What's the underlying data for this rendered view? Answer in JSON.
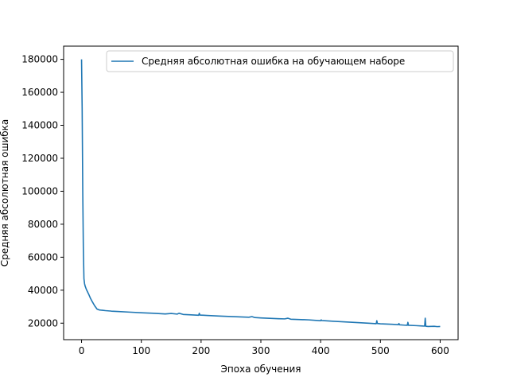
{
  "chart_data": {
    "type": "line",
    "title": "",
    "xlabel": "Эпоха обучения",
    "ylabel": "Средняя абсолютная ошибка",
    "xlim": [
      -30,
      630
    ],
    "ylim": [
      10000,
      188000
    ],
    "x_ticks": [
      0,
      100,
      200,
      300,
      400,
      500,
      600
    ],
    "x_tick_labels": [
      "0",
      "100",
      "200",
      "300",
      "400",
      "500",
      "600"
    ],
    "y_ticks": [
      20000,
      40000,
      60000,
      80000,
      100000,
      120000,
      140000,
      160000,
      180000
    ],
    "y_tick_labels": [
      "20000",
      "40000",
      "60000",
      "80000",
      "100000",
      "120000",
      "140000",
      "160000",
      "180000"
    ],
    "grid": false,
    "legend_position": "top-right",
    "series": [
      {
        "name": "Средняя абсолютная ошибка на обучающем наборе",
        "color": "#1f77b4",
        "x": [
          0,
          1,
          2,
          3,
          4,
          5,
          6,
          8,
          10,
          12,
          15,
          18,
          22,
          26,
          30,
          35,
          40,
          50,
          60,
          80,
          100,
          120,
          140,
          150,
          160,
          163,
          170,
          180,
          196,
          197,
          198,
          210,
          230,
          250,
          280,
          285,
          290,
          300,
          330,
          340,
          345,
          350,
          380,
          400,
          401,
          402,
          420,
          450,
          480,
          493,
          494,
          495,
          500,
          520,
          530,
          531,
          532,
          540,
          545,
          546,
          547,
          560,
          570,
          574,
          575,
          576,
          580,
          590,
          595,
          600
        ],
        "y": [
          180000,
          150000,
          100000,
          65000,
          47000,
          44000,
          42500,
          40500,
          39000,
          37500,
          35000,
          33000,
          30500,
          28500,
          28000,
          27800,
          27600,
          27300,
          27100,
          26700,
          26300,
          26000,
          25600,
          25900,
          25500,
          26000,
          25300,
          25100,
          24800,
          26000,
          24900,
          24700,
          24300,
          24000,
          23600,
          24000,
          23400,
          23200,
          22700,
          22600,
          23000,
          22400,
          22000,
          21500,
          22000,
          21600,
          21200,
          20600,
          20000,
          19700,
          21500,
          19800,
          19600,
          19300,
          19100,
          19800,
          19000,
          18800,
          18700,
          20500,
          18700,
          18500,
          18300,
          18200,
          23000,
          18100,
          18000,
          18100,
          17900,
          18000
        ]
      }
    ]
  }
}
